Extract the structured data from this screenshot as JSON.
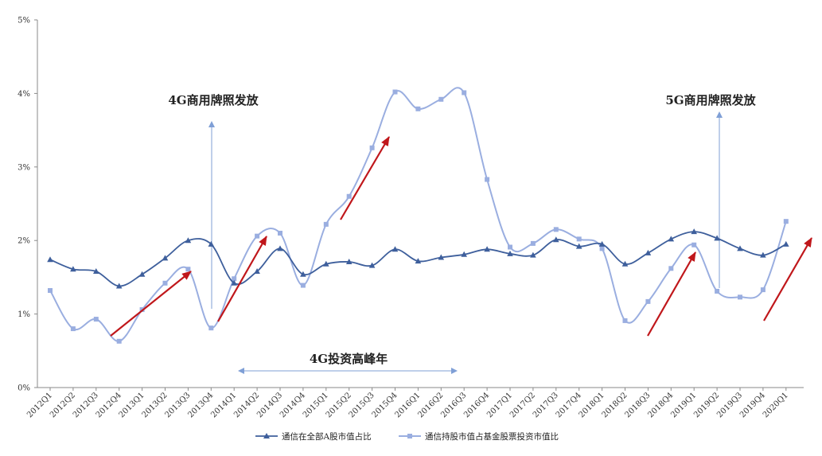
{
  "chart_data": {
    "type": "line",
    "categories": [
      "2012Q1",
      "2012Q2",
      "2012Q3",
      "2012Q4",
      "2013Q1",
      "2013Q2",
      "2013Q3",
      "2013Q4",
      "2014Q1",
      "2014Q2",
      "2014Q3",
      "2014Q4",
      "2015Q1",
      "2015Q2",
      "2015Q3",
      "2015Q4",
      "2016Q1",
      "2016Q2",
      "2016Q3",
      "2016Q4",
      "2017Q1",
      "2017Q2",
      "2017Q3",
      "2017Q4",
      "2018Q1",
      "2018Q2",
      "2018Q3",
      "2018Q4",
      "2019Q1",
      "2019Q2",
      "2019Q3",
      "2019Q4",
      "2020Q1"
    ],
    "series": [
      {
        "name": "通信在全部A股市值占比",
        "color": "#3e5f9c",
        "marker": "triangle",
        "values": [
          1.74,
          1.61,
          1.58,
          1.38,
          1.54,
          1.76,
          2.0,
          1.95,
          1.42,
          1.58,
          1.89,
          1.54,
          1.68,
          1.71,
          1.66,
          1.88,
          1.72,
          1.77,
          1.81,
          1.88,
          1.82,
          1.8,
          2.01,
          1.92,
          1.95,
          1.68,
          1.83,
          2.02,
          2.12,
          2.03,
          1.89,
          1.8,
          1.95
        ]
      },
      {
        "name": "通信持股市值占基金股票投资市值比",
        "color": "#9aaee0",
        "marker": "square",
        "values": [
          1.32,
          0.8,
          0.93,
          0.63,
          1.06,
          1.42,
          1.61,
          0.81,
          1.48,
          2.06,
          2.1,
          1.39,
          2.22,
          2.6,
          3.26,
          4.02,
          3.79,
          3.92,
          4.01,
          2.83,
          1.91,
          1.96,
          2.15,
          2.02,
          1.89,
          0.91,
          1.17,
          1.62,
          1.94,
          1.31,
          1.23,
          1.33,
          2.26
        ]
      }
    ],
    "y_ticks": [
      "0%",
      "1%",
      "2%",
      "3%",
      "4%",
      "5%"
    ],
    "ylim": [
      0,
      5
    ],
    "annotations": {
      "g4_license": "4G商用牌照发放",
      "g5_license": "5G商用牌照发放",
      "g4_peak": "4G投资高峰年"
    },
    "trend_arrow_color": "#c0171b",
    "legend_position": "bottom",
    "grid": false
  }
}
